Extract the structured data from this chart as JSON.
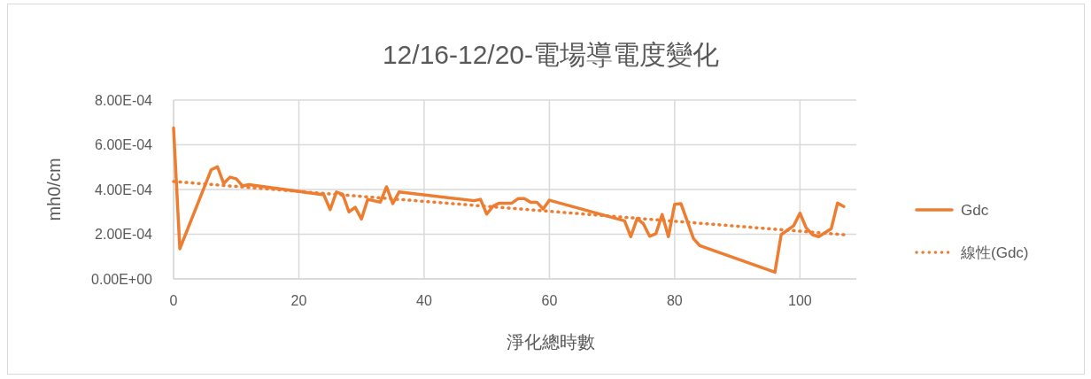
{
  "chart_data": {
    "type": "line",
    "title": "12/16-12/20-電場導電度變化",
    "xlabel": "淨化總時數",
    "ylabel": "mh0/cm",
    "xlim": [
      0,
      109
    ],
    "xticks": [
      0,
      20,
      40,
      60,
      80,
      100
    ],
    "ylim": [
      0,
      0.0008
    ],
    "yticks": [
      {
        "value": 0,
        "label": "0.00E+00"
      },
      {
        "value": 0.0002,
        "label": "2.00E-04"
      },
      {
        "value": 0.0004,
        "label": "4.00E-04"
      },
      {
        "value": 0.0006,
        "label": "6.00E-04"
      },
      {
        "value": 0.0008,
        "label": "8.00E-04"
      }
    ],
    "grid": true,
    "legend": "right",
    "series": [
      {
        "name": "Gdc",
        "color": "#ed7d31",
        "line_style": "solid",
        "x": [
          0,
          1,
          6,
          7,
          8,
          9,
          10,
          11,
          12,
          24,
          25,
          26,
          27,
          28,
          29,
          30,
          31,
          33,
          34,
          35,
          36,
          48,
          49,
          50,
          51,
          52,
          54,
          55,
          56,
          57,
          58,
          59,
          60,
          72,
          73,
          74,
          75,
          76,
          77,
          78,
          79,
          80,
          81,
          83,
          84,
          96,
          97,
          99,
          100,
          101,
          102,
          103,
          105,
          106,
          107
        ],
        "values": [
          0.000675,
          0.000135,
          0.000488,
          0.000502,
          0.000427,
          0.000455,
          0.000448,
          0.000416,
          0.000422,
          0.000376,
          0.00031,
          0.000389,
          0.000379,
          0.0003,
          0.00032,
          0.000268,
          0.000356,
          0.000343,
          0.000412,
          0.000337,
          0.000389,
          0.00035,
          0.000356,
          0.00029,
          0.000325,
          0.000339,
          0.000339,
          0.000359,
          0.000359,
          0.000343,
          0.000343,
          0.000313,
          0.000352,
          0.00026,
          0.000189,
          0.00027,
          0.000247,
          0.000191,
          0.000202,
          0.000288,
          0.000189,
          0.000334,
          0.000337,
          0.000181,
          0.000149,
          3e-05,
          0.000198,
          0.000238,
          0.000294,
          0.000228,
          0.000198,
          0.000189,
          0.000225,
          0.000339,
          0.000324
        ]
      },
      {
        "name": "線性(Gdc)",
        "color": "#ed7d31",
        "line_style": "dotted",
        "x": [
          0,
          107
        ],
        "values": [
          0.000436,
          0.000198
        ]
      }
    ]
  }
}
